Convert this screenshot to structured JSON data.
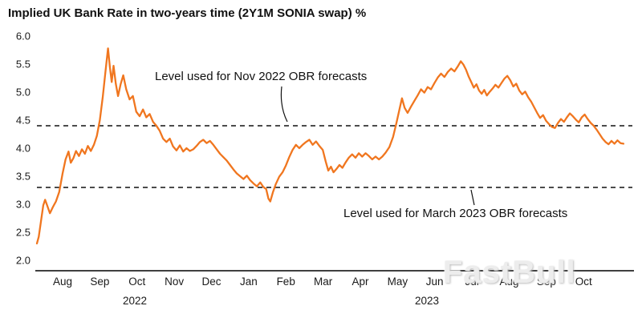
{
  "title": "Implied UK Bank Rate in two-years time (2Y1M SONIA swap) %",
  "watermark": "FastBull",
  "chart_data": {
    "type": "line",
    "title": "Implied UK Bank Rate in two-years time (2Y1M SONIA swap) %",
    "xlabel": "",
    "ylabel": "%",
    "grid": false,
    "legend": "none",
    "ylim": [
      2.0,
      6.0
    ],
    "y_ticks": [
      6.0,
      5.5,
      5.0,
      4.5,
      4.0,
      3.5,
      3.0,
      2.5,
      2.0
    ],
    "x_unit": "months (0 = Aug 2022, 1 = Sep 2022, ...)",
    "xlim": [
      -0.19,
      15.81
    ],
    "x_ticks": [
      {
        "label": "Aug",
        "m": 0.5
      },
      {
        "label": "Sep",
        "m": 1.5
      },
      {
        "label": "Oct",
        "m": 2.5
      },
      {
        "label": "Nov",
        "m": 3.5
      },
      {
        "label": "Dec",
        "m": 4.5
      },
      {
        "label": "Jan",
        "m": 5.5
      },
      {
        "label": "Feb",
        "m": 6.5
      },
      {
        "label": "Mar",
        "m": 7.5
      },
      {
        "label": "Apr",
        "m": 8.5
      },
      {
        "label": "May",
        "m": 9.5
      },
      {
        "label": "Jun",
        "m": 10.5
      },
      {
        "label": "Jul",
        "m": 11.5
      },
      {
        "label": "Aug",
        "m": 12.5
      },
      {
        "label": "Sep",
        "m": 13.5
      },
      {
        "label": "Oct",
        "m": 14.5
      }
    ],
    "year_labels": [
      {
        "label": "2022",
        "m": 2.44
      },
      {
        "label": "2023",
        "m": 10.29
      }
    ],
    "reference_lines": [
      {
        "value": 4.4,
        "label": "Level used for Nov 2022 OBR forecasts"
      },
      {
        "value": 3.3,
        "label": "Level used for March 2023 OBR forecasts"
      }
    ],
    "series": [
      {
        "name": "2Y1M SONIA swap rate %",
        "color": "#F0761F",
        "points": [
          [
            -0.19,
            2.3
          ],
          [
            -0.14,
            2.42
          ],
          [
            -0.08,
            2.7
          ],
          [
            -0.02,
            2.98
          ],
          [
            0.03,
            3.08
          ],
          [
            0.09,
            2.97
          ],
          [
            0.16,
            2.84
          ],
          [
            0.24,
            2.95
          ],
          [
            0.32,
            3.05
          ],
          [
            0.41,
            3.22
          ],
          [
            0.5,
            3.55
          ],
          [
            0.58,
            3.8
          ],
          [
            0.66,
            3.94
          ],
          [
            0.72,
            3.74
          ],
          [
            0.79,
            3.82
          ],
          [
            0.86,
            3.95
          ],
          [
            0.94,
            3.86
          ],
          [
            1.02,
            3.98
          ],
          [
            1.1,
            3.9
          ],
          [
            1.18,
            4.04
          ],
          [
            1.26,
            3.95
          ],
          [
            1.34,
            4.06
          ],
          [
            1.42,
            4.22
          ],
          [
            1.5,
            4.5
          ],
          [
            1.58,
            4.92
          ],
          [
            1.65,
            5.35
          ],
          [
            1.72,
            5.78
          ],
          [
            1.77,
            5.45
          ],
          [
            1.82,
            5.18
          ],
          [
            1.87,
            5.47
          ],
          [
            1.93,
            5.15
          ],
          [
            1.99,
            4.93
          ],
          [
            2.06,
            5.14
          ],
          [
            2.13,
            5.3
          ],
          [
            2.21,
            5.05
          ],
          [
            2.3,
            4.87
          ],
          [
            2.39,
            4.93
          ],
          [
            2.48,
            4.65
          ],
          [
            2.57,
            4.57
          ],
          [
            2.66,
            4.69
          ],
          [
            2.75,
            4.55
          ],
          [
            2.84,
            4.61
          ],
          [
            2.93,
            4.47
          ],
          [
            3.02,
            4.4
          ],
          [
            3.11,
            4.31
          ],
          [
            3.2,
            4.17
          ],
          [
            3.29,
            4.11
          ],
          [
            3.38,
            4.17
          ],
          [
            3.47,
            4.03
          ],
          [
            3.56,
            3.96
          ],
          [
            3.65,
            4.05
          ],
          [
            3.74,
            3.94
          ],
          [
            3.83,
            4.0
          ],
          [
            3.92,
            3.95
          ],
          [
            4.01,
            3.98
          ],
          [
            4.1,
            4.04
          ],
          [
            4.19,
            4.11
          ],
          [
            4.28,
            4.15
          ],
          [
            4.37,
            4.09
          ],
          [
            4.46,
            4.13
          ],
          [
            4.55,
            4.06
          ],
          [
            4.64,
            3.98
          ],
          [
            4.73,
            3.9
          ],
          [
            4.82,
            3.84
          ],
          [
            4.91,
            3.78
          ],
          [
            5.0,
            3.7
          ],
          [
            5.09,
            3.62
          ],
          [
            5.18,
            3.55
          ],
          [
            5.27,
            3.5
          ],
          [
            5.36,
            3.45
          ],
          [
            5.45,
            3.51
          ],
          [
            5.54,
            3.43
          ],
          [
            5.63,
            3.37
          ],
          [
            5.72,
            3.32
          ],
          [
            5.81,
            3.39
          ],
          [
            5.89,
            3.31
          ],
          [
            5.97,
            3.27
          ],
          [
            6.03,
            3.1
          ],
          [
            6.08,
            3.05
          ],
          [
            6.15,
            3.21
          ],
          [
            6.23,
            3.36
          ],
          [
            6.32,
            3.49
          ],
          [
            6.41,
            3.57
          ],
          [
            6.5,
            3.69
          ],
          [
            6.59,
            3.84
          ],
          [
            6.68,
            3.97
          ],
          [
            6.77,
            4.06
          ],
          [
            6.86,
            4.0
          ],
          [
            6.95,
            4.06
          ],
          [
            7.04,
            4.11
          ],
          [
            7.13,
            4.15
          ],
          [
            7.22,
            4.06
          ],
          [
            7.31,
            4.12
          ],
          [
            7.4,
            4.04
          ],
          [
            7.49,
            3.97
          ],
          [
            7.57,
            3.76
          ],
          [
            7.64,
            3.6
          ],
          [
            7.71,
            3.67
          ],
          [
            7.78,
            3.57
          ],
          [
            7.86,
            3.63
          ],
          [
            7.94,
            3.7
          ],
          [
            8.02,
            3.65
          ],
          [
            8.1,
            3.74
          ],
          [
            8.19,
            3.83
          ],
          [
            8.28,
            3.89
          ],
          [
            8.37,
            3.83
          ],
          [
            8.46,
            3.91
          ],
          [
            8.55,
            3.85
          ],
          [
            8.64,
            3.91
          ],
          [
            8.73,
            3.86
          ],
          [
            8.82,
            3.8
          ],
          [
            8.91,
            3.85
          ],
          [
            9.0,
            3.8
          ],
          [
            9.09,
            3.85
          ],
          [
            9.18,
            3.92
          ],
          [
            9.28,
            4.02
          ],
          [
            9.38,
            4.2
          ],
          [
            9.47,
            4.45
          ],
          [
            9.56,
            4.72
          ],
          [
            9.62,
            4.89
          ],
          [
            9.69,
            4.72
          ],
          [
            9.77,
            4.63
          ],
          [
            9.86,
            4.74
          ],
          [
            9.95,
            4.84
          ],
          [
            10.04,
            4.94
          ],
          [
            10.13,
            5.05
          ],
          [
            10.22,
            4.99
          ],
          [
            10.31,
            5.09
          ],
          [
            10.4,
            5.05
          ],
          [
            10.49,
            5.16
          ],
          [
            10.58,
            5.26
          ],
          [
            10.67,
            5.33
          ],
          [
            10.76,
            5.27
          ],
          [
            10.85,
            5.36
          ],
          [
            10.94,
            5.42
          ],
          [
            11.03,
            5.37
          ],
          [
            11.12,
            5.46
          ],
          [
            11.2,
            5.55
          ],
          [
            11.27,
            5.49
          ],
          [
            11.34,
            5.4
          ],
          [
            11.41,
            5.28
          ],
          [
            11.48,
            5.18
          ],
          [
            11.55,
            5.08
          ],
          [
            11.62,
            5.14
          ],
          [
            11.69,
            5.03
          ],
          [
            11.76,
            4.97
          ],
          [
            11.83,
            5.04
          ],
          [
            11.9,
            4.94
          ],
          [
            11.97,
            5.0
          ],
          [
            12.05,
            5.06
          ],
          [
            12.13,
            5.13
          ],
          [
            12.21,
            5.08
          ],
          [
            12.29,
            5.16
          ],
          [
            12.37,
            5.24
          ],
          [
            12.45,
            5.29
          ],
          [
            12.53,
            5.21
          ],
          [
            12.61,
            5.1
          ],
          [
            12.69,
            5.15
          ],
          [
            12.77,
            5.03
          ],
          [
            12.85,
            4.96
          ],
          [
            12.93,
            5.01
          ],
          [
            13.01,
            4.91
          ],
          [
            13.09,
            4.83
          ],
          [
            13.17,
            4.73
          ],
          [
            13.25,
            4.63
          ],
          [
            13.33,
            4.54
          ],
          [
            13.41,
            4.59
          ],
          [
            13.49,
            4.49
          ],
          [
            13.57,
            4.43
          ],
          [
            13.65,
            4.38
          ],
          [
            13.73,
            4.36
          ],
          [
            13.81,
            4.45
          ],
          [
            13.89,
            4.52
          ],
          [
            13.97,
            4.47
          ],
          [
            14.05,
            4.55
          ],
          [
            14.13,
            4.62
          ],
          [
            14.21,
            4.57
          ],
          [
            14.29,
            4.51
          ],
          [
            14.37,
            4.46
          ],
          [
            14.45,
            4.55
          ],
          [
            14.53,
            4.6
          ],
          [
            14.61,
            4.52
          ],
          [
            14.69,
            4.45
          ],
          [
            14.77,
            4.4
          ],
          [
            14.85,
            4.33
          ],
          [
            14.93,
            4.25
          ],
          [
            15.01,
            4.17
          ],
          [
            15.09,
            4.11
          ],
          [
            15.17,
            4.07
          ],
          [
            15.25,
            4.13
          ],
          [
            15.33,
            4.08
          ],
          [
            15.41,
            4.14
          ],
          [
            15.49,
            4.09
          ],
          [
            15.57,
            4.08
          ]
        ]
      }
    ]
  }
}
